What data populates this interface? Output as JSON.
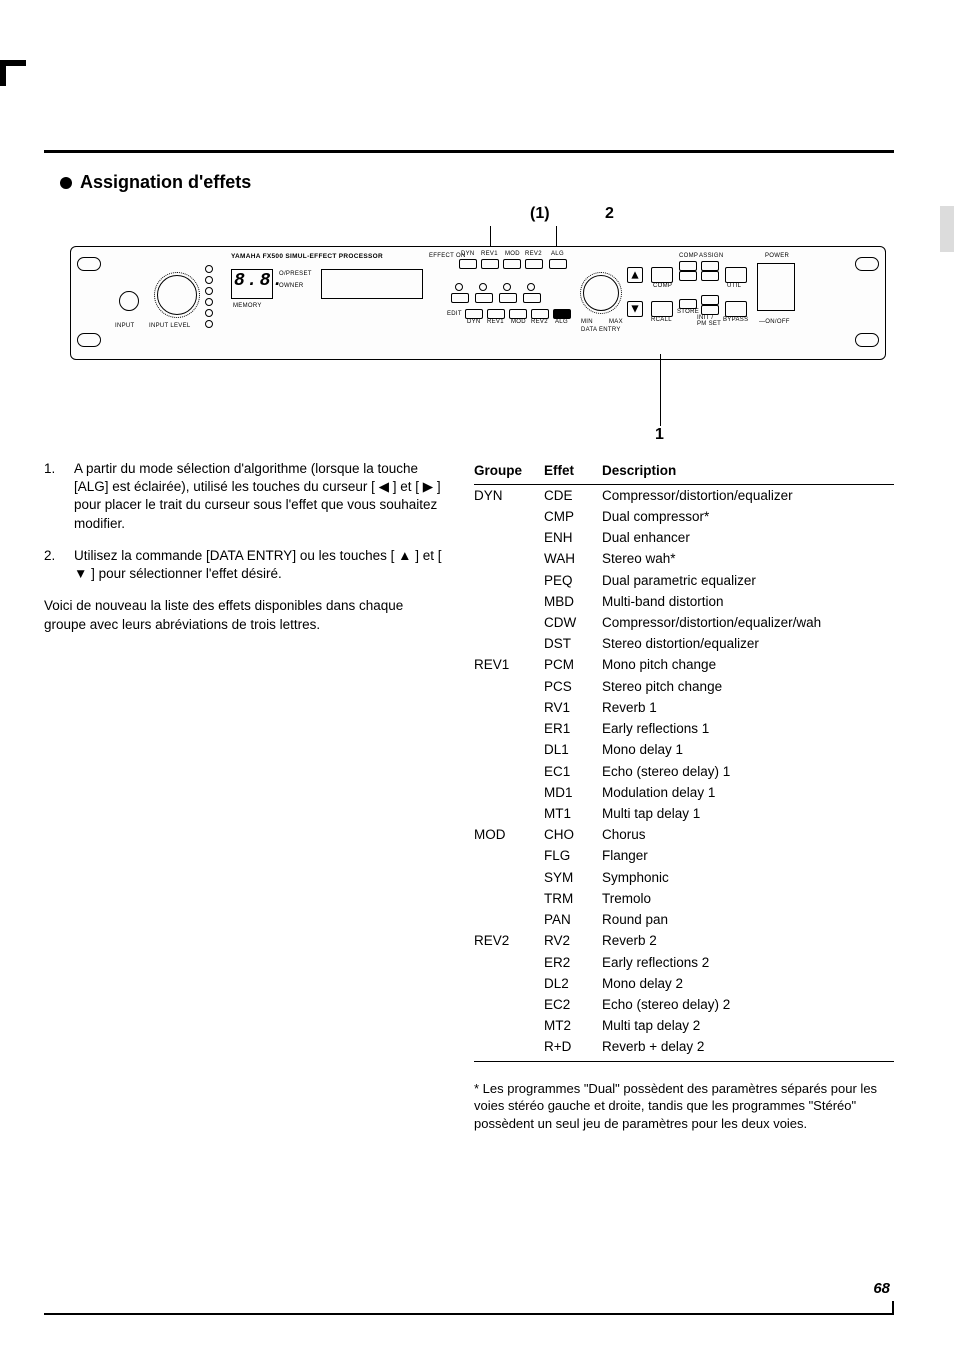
{
  "title": "Assignation d'effets",
  "callouts": {
    "one_paren": "(1)",
    "two": "2",
    "one": "1"
  },
  "diagram": {
    "brand_line": "YAMAHA FX500  SIMUL-EFFECT PROCESSOR",
    "sevenseg": "8.8.",
    "labels": {
      "input": "INPUT",
      "input_level": "INPUT LEVEL",
      "preset": "O/PRESET",
      "owner": "OWNER",
      "memory": "MEMORY",
      "effect_on": "EFFECT ON",
      "edit": "EDIT",
      "dyn": "DYN",
      "rev1": "REV1",
      "mod": "MOD",
      "rev2": "REV2",
      "alg": "ALG",
      "min": "MIN",
      "max": "MAX",
      "data_entry": "DATA ENTRY",
      "comp": "COMP",
      "assign": "ASSIGN",
      "util": "UTIL",
      "recall": "RCALL",
      "store": "STORE",
      "init": "INIT / PM SET",
      "bypass": "BYPASS",
      "power": "POWER",
      "on_off": "—ON/OFF"
    }
  },
  "steps": [
    {
      "n": "1.",
      "text": "A partir du mode sélection d'algorithme (lorsque la touche [ALG] est éclairée), utilisé les touches du curseur [ ◀ ] et [ ▶ ] pour placer le trait du curseur sous l'effet que vous souhaitez modifier."
    },
    {
      "n": "2.",
      "text": "Utilisez la commande [DATA ENTRY] ou les touches [ ▲ ] et [ ▼ ] pour sélectionner l'effet désiré."
    }
  ],
  "intro_para": "Voici de nouveau la liste des effets disponibles dans chaque groupe avec leurs abréviations de trois lettres.",
  "table": {
    "headers": {
      "group": "Groupe",
      "effect": "Effet",
      "desc": "Description"
    },
    "groups": [
      {
        "name": "DYN",
        "rows": [
          {
            "eff": "CDE",
            "desc": "Compressor/distortion/equalizer"
          },
          {
            "eff": "CMP",
            "desc": "Dual compressor*"
          },
          {
            "eff": "ENH",
            "desc": "Dual enhancer"
          },
          {
            "eff": "WAH",
            "desc": "Stereo wah*"
          },
          {
            "eff": "PEQ",
            "desc": "Dual parametric equalizer"
          },
          {
            "eff": "MBD",
            "desc": "Multi-band distortion"
          },
          {
            "eff": "CDW",
            "desc": "Compressor/distortion/equalizer/wah"
          },
          {
            "eff": "DST",
            "desc": "Stereo distortion/equalizer"
          }
        ]
      },
      {
        "name": "REV1",
        "rows": [
          {
            "eff": "PCM",
            "desc": "Mono pitch change"
          },
          {
            "eff": "PCS",
            "desc": "Stereo pitch change"
          },
          {
            "eff": "RV1",
            "desc": "Reverb 1"
          },
          {
            "eff": "ER1",
            "desc": "Early reflections 1"
          },
          {
            "eff": "DL1",
            "desc": "Mono delay 1"
          },
          {
            "eff": "EC1",
            "desc": "Echo (stereo delay) 1"
          },
          {
            "eff": "MD1",
            "desc": "Modulation delay 1"
          },
          {
            "eff": "MT1",
            "desc": "Multi tap delay 1"
          }
        ]
      },
      {
        "name": "MOD",
        "rows": [
          {
            "eff": "CHO",
            "desc": "Chorus"
          },
          {
            "eff": "FLG",
            "desc": "Flanger"
          },
          {
            "eff": "SYM",
            "desc": "Symphonic"
          },
          {
            "eff": "TRM",
            "desc": "Tremolo"
          },
          {
            "eff": "PAN",
            "desc": "Round pan"
          }
        ]
      },
      {
        "name": "REV2",
        "rows": [
          {
            "eff": "RV2",
            "desc": "Reverb 2"
          },
          {
            "eff": "ER2",
            "desc": "Early reflections 2"
          },
          {
            "eff": "DL2",
            "desc": "Mono delay 2"
          },
          {
            "eff": "EC2",
            "desc": "Echo (stereo delay) 2"
          },
          {
            "eff": "MT2",
            "desc": "Multi tap delay 2"
          },
          {
            "eff": "R+D",
            "desc": "Reverb + delay 2"
          }
        ]
      }
    ]
  },
  "footnote": "* Les programmes \"Dual\" possèdent des paramètres séparés pour les voies stéréo gauche et droite, tandis que les programmes \"Stéréo\" possèdent un seul jeu de paramètres pour les deux voies.",
  "page_number": "68"
}
